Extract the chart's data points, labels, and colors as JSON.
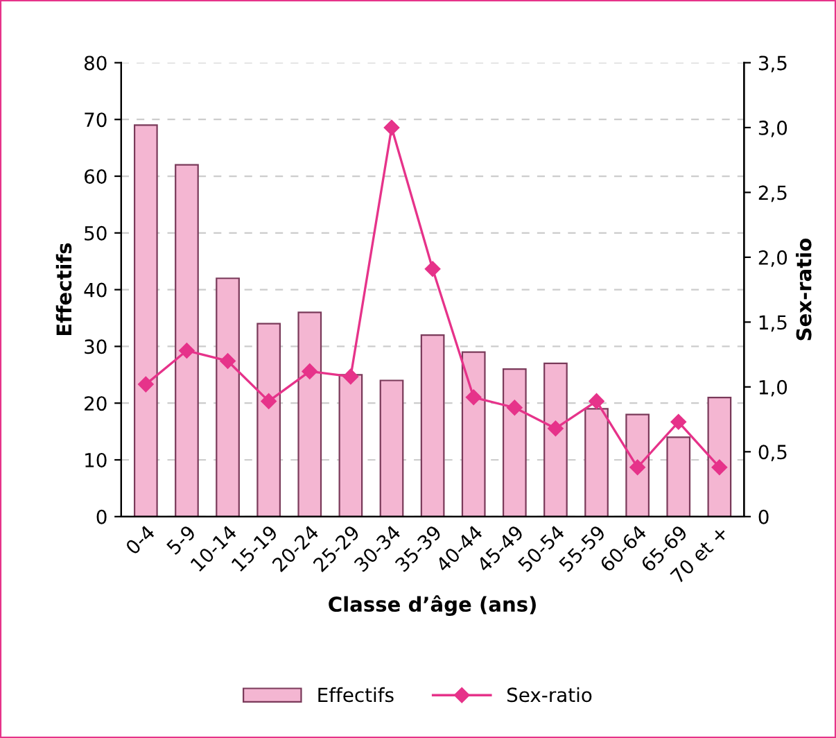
{
  "chart_data": {
    "type": "bar",
    "xlabel": "Classe d’âge (ans)",
    "ylabel": "Effectifs",
    "y2label": "Sex-ratio",
    "categories": [
      "0-4",
      "5-9",
      "10-14",
      "15-19",
      "20-24",
      "25-29",
      "30-34",
      "35-39",
      "40-44",
      "45-49",
      "50-54",
      "55-59",
      "60-64",
      "65-69",
      "70 et +"
    ],
    "series": [
      {
        "name": "Effectifs",
        "color": "#f4b6d2",
        "values": [
          69,
          62,
          42,
          34,
          36,
          25,
          24,
          32,
          29,
          26,
          27,
          19,
          18,
          14,
          21
        ]
      },
      {
        "name": "Sex-ratio",
        "type": "line",
        "axis": "y2",
        "color": "#e6338a",
        "marker": "diamond",
        "values": [
          1.02,
          1.28,
          1.2,
          0.89,
          1.12,
          1.08,
          3.0,
          1.91,
          0.92,
          0.84,
          0.68,
          0.89,
          0.38,
          0.73,
          0.38
        ]
      }
    ],
    "ylim": [
      0,
      80
    ],
    "yticks": [
      0,
      10,
      20,
      30,
      40,
      50,
      60,
      70,
      80
    ],
    "y2lim": [
      0,
      3.5
    ],
    "y2ticks": [
      {
        "value": 0,
        "label": "0"
      },
      {
        "value": 0.5,
        "label": "0,5"
      },
      {
        "value": 1,
        "label": "1,0"
      },
      {
        "value": 1.5,
        "label": "1,5"
      },
      {
        "value": 2,
        "label": "2,0"
      },
      {
        "value": 2.5,
        "label": "2,5"
      },
      {
        "value": 3,
        "label": "3,0"
      },
      {
        "value": 3.5,
        "label": "3,5"
      }
    ],
    "grid": "y",
    "legend": "bottom"
  }
}
